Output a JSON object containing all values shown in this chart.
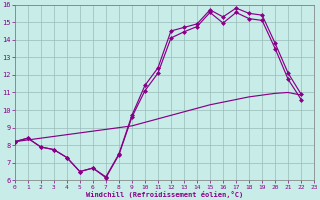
{
  "xlabel": "Windchill (Refroidissement éolien,°C)",
  "xlim": [
    0,
    23
  ],
  "ylim": [
    6,
    16
  ],
  "xticks": [
    0,
    1,
    2,
    3,
    4,
    5,
    6,
    7,
    8,
    9,
    10,
    11,
    12,
    13,
    14,
    15,
    16,
    17,
    18,
    19,
    20,
    21,
    22,
    23
  ],
  "yticks": [
    6,
    7,
    8,
    9,
    10,
    11,
    12,
    13,
    14,
    15,
    16
  ],
  "bg_color": "#c8ede8",
  "grid_color": "#9bbbb8",
  "line_color": "#880088",
  "line1_x": [
    0,
    1,
    2,
    3,
    4,
    5,
    6,
    7,
    8,
    9,
    10,
    11,
    12,
    13,
    14,
    15,
    16,
    17,
    18,
    19,
    20,
    21,
    22
  ],
  "line1_y": [
    8.2,
    8.4,
    7.9,
    7.75,
    7.3,
    6.5,
    6.7,
    6.2,
    7.5,
    9.7,
    11.4,
    12.4,
    14.5,
    14.7,
    14.9,
    15.7,
    15.3,
    15.8,
    15.5,
    15.4,
    13.8,
    12.1,
    10.9
  ],
  "line2_x": [
    0,
    1,
    2,
    3,
    4,
    5,
    6,
    7,
    8,
    9,
    10,
    11,
    12,
    13,
    14,
    15,
    16,
    17,
    18,
    19,
    20,
    21,
    22
  ],
  "line2_y": [
    8.2,
    8.4,
    7.9,
    7.75,
    7.3,
    6.5,
    6.7,
    6.15,
    7.45,
    9.6,
    11.1,
    12.1,
    14.1,
    14.45,
    14.75,
    15.55,
    14.95,
    15.55,
    15.2,
    15.1,
    13.5,
    11.75,
    10.6
  ],
  "line3_x": [
    0,
    1,
    2,
    3,
    4,
    5,
    6,
    7,
    8,
    9,
    10,
    11,
    12,
    13,
    14,
    15,
    16,
    17,
    18,
    19,
    20,
    21,
    22
  ],
  "line3_y": [
    8.2,
    8.3,
    8.4,
    8.5,
    8.6,
    8.7,
    8.8,
    8.9,
    9.0,
    9.1,
    9.3,
    9.5,
    9.7,
    9.9,
    10.1,
    10.3,
    10.45,
    10.6,
    10.75,
    10.85,
    10.95,
    11.0,
    10.85
  ],
  "markersize": 2.5,
  "lw": 0.85
}
